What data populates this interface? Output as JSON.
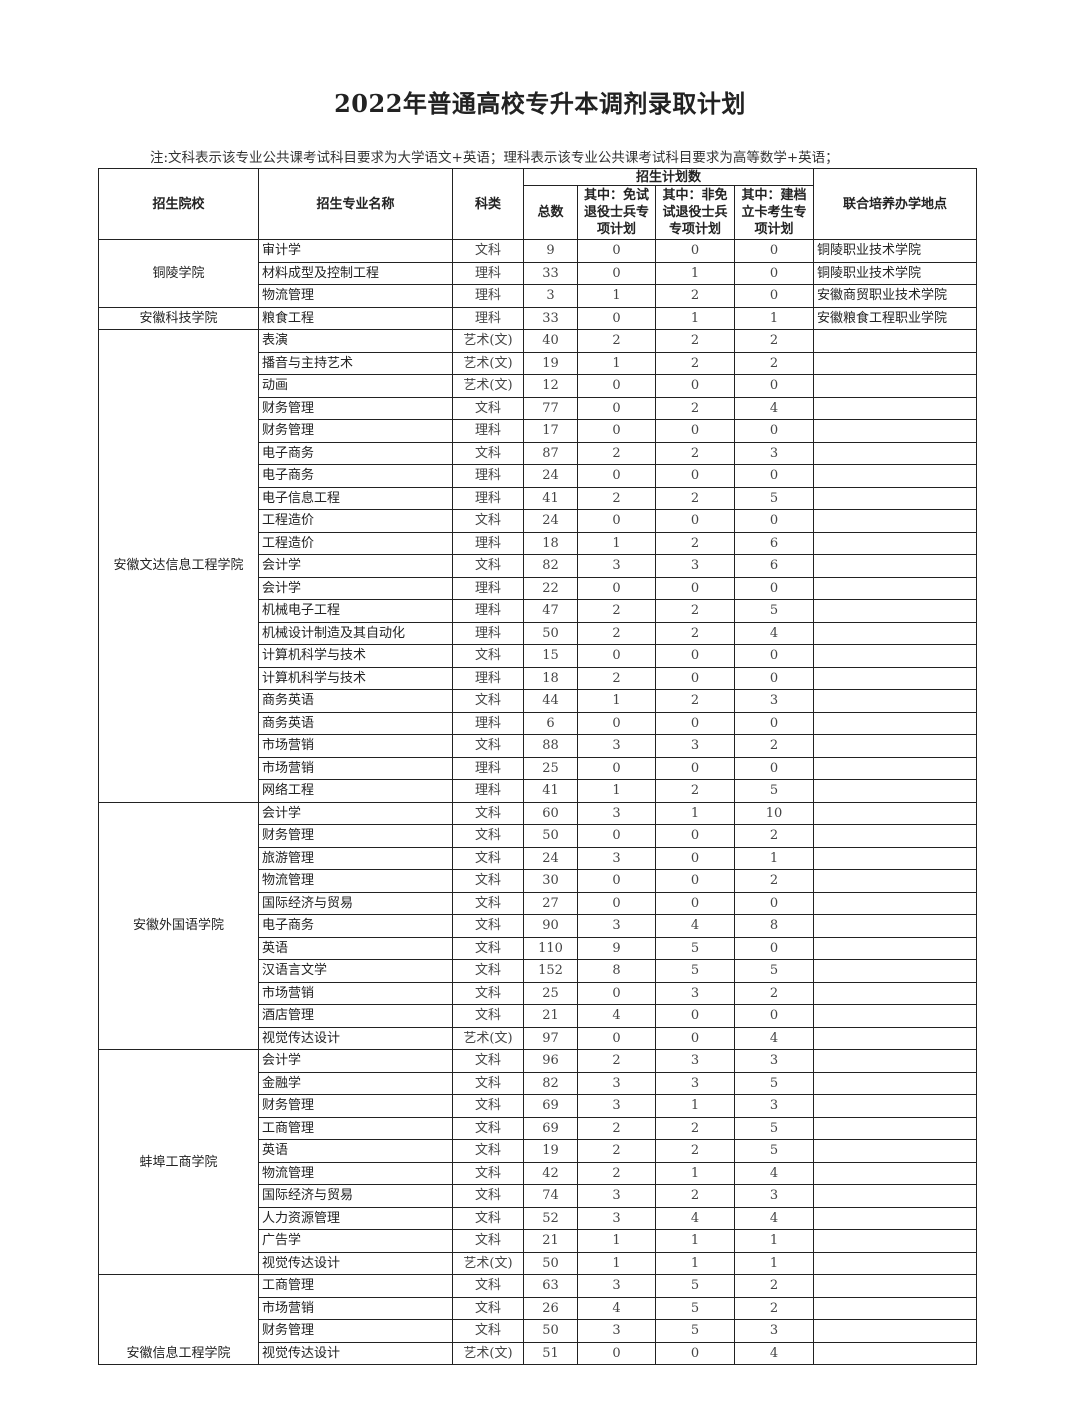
{
  "title": "2022年普通高校专升本调剂录取计划",
  "note": "注:文科表示该专业公共课考试科目要求为大学语文+英语；理科表示该专业公共课考试科目要求为高等数学+英语；",
  "headers": {
    "school": "招生院校",
    "major": "招生专业名称",
    "subject": "科类",
    "plan_group": "招生计划数",
    "total": "总数",
    "veteran_exempt": "其中：免试退役士兵专项计划",
    "veteran_nonexempt": "其中：非免试退役士兵专项计划",
    "poverty": "其中：建档立卡考生专项计划",
    "location": "联合培养办学地点"
  },
  "groups": [
    {
      "school": "铜陵学院",
      "rows": [
        {
          "major": "审计学",
          "subject": "文科",
          "total": "9",
          "a": "0",
          "b": "0",
          "c": "0",
          "location": "铜陵职业技术学院"
        },
        {
          "major": "材料成型及控制工程",
          "subject": "理科",
          "total": "33",
          "a": "0",
          "b": "1",
          "c": "0",
          "location": "铜陵职业技术学院"
        },
        {
          "major": "物流管理",
          "subject": "理科",
          "total": "3",
          "a": "1",
          "b": "2",
          "c": "0",
          "location": "安徽商贸职业技术学院"
        }
      ]
    },
    {
      "school": "安徽科技学院",
      "rows": [
        {
          "major": "粮食工程",
          "subject": "理科",
          "total": "33",
          "a": "0",
          "b": "1",
          "c": "1",
          "location": "安徽粮食工程职业学院"
        }
      ]
    },
    {
      "school": "安徽文达信息工程学院",
      "rows": [
        {
          "major": "表演",
          "subject": "艺术(文)",
          "total": "40",
          "a": "2",
          "b": "2",
          "c": "2",
          "location": ""
        },
        {
          "major": "播音与主持艺术",
          "subject": "艺术(文)",
          "total": "19",
          "a": "1",
          "b": "2",
          "c": "2",
          "location": ""
        },
        {
          "major": "动画",
          "subject": "艺术(文)",
          "total": "12",
          "a": "0",
          "b": "0",
          "c": "0",
          "location": ""
        },
        {
          "major": "财务管理",
          "subject": "文科",
          "total": "77",
          "a": "0",
          "b": "2",
          "c": "4",
          "location": ""
        },
        {
          "major": "财务管理",
          "subject": "理科",
          "total": "17",
          "a": "0",
          "b": "0",
          "c": "0",
          "location": ""
        },
        {
          "major": "电子商务",
          "subject": "文科",
          "total": "87",
          "a": "2",
          "b": "2",
          "c": "3",
          "location": ""
        },
        {
          "major": "电子商务",
          "subject": "理科",
          "total": "24",
          "a": "0",
          "b": "0",
          "c": "0",
          "location": ""
        },
        {
          "major": "电子信息工程",
          "subject": "理科",
          "total": "41",
          "a": "2",
          "b": "2",
          "c": "5",
          "location": ""
        },
        {
          "major": "工程造价",
          "subject": "文科",
          "total": "24",
          "a": "0",
          "b": "0",
          "c": "0",
          "location": ""
        },
        {
          "major": "工程造价",
          "subject": "理科",
          "total": "18",
          "a": "1",
          "b": "2",
          "c": "6",
          "location": ""
        },
        {
          "major": "会计学",
          "subject": "文科",
          "total": "82",
          "a": "3",
          "b": "3",
          "c": "6",
          "location": ""
        },
        {
          "major": "会计学",
          "subject": "理科",
          "total": "22",
          "a": "0",
          "b": "0",
          "c": "0",
          "location": ""
        },
        {
          "major": "机械电子工程",
          "subject": "理科",
          "total": "47",
          "a": "2",
          "b": "2",
          "c": "5",
          "location": ""
        },
        {
          "major": "机械设计制造及其自动化",
          "subject": "理科",
          "total": "50",
          "a": "2",
          "b": "2",
          "c": "4",
          "location": ""
        },
        {
          "major": "计算机科学与技术",
          "subject": "文科",
          "total": "15",
          "a": "0",
          "b": "0",
          "c": "0",
          "location": ""
        },
        {
          "major": "计算机科学与技术",
          "subject": "理科",
          "total": "18",
          "a": "2",
          "b": "0",
          "c": "0",
          "location": ""
        },
        {
          "major": "商务英语",
          "subject": "文科",
          "total": "44",
          "a": "1",
          "b": "2",
          "c": "3",
          "location": ""
        },
        {
          "major": "商务英语",
          "subject": "理科",
          "total": "6",
          "a": "0",
          "b": "0",
          "c": "0",
          "location": ""
        },
        {
          "major": "市场营销",
          "subject": "文科",
          "total": "88",
          "a": "3",
          "b": "3",
          "c": "2",
          "location": ""
        },
        {
          "major": "市场营销",
          "subject": "理科",
          "total": "25",
          "a": "0",
          "b": "0",
          "c": "0",
          "location": ""
        },
        {
          "major": "网络工程",
          "subject": "理科",
          "total": "41",
          "a": "1",
          "b": "2",
          "c": "5",
          "location": ""
        }
      ]
    },
    {
      "school": "安徽外国语学院",
      "rows": [
        {
          "major": "会计学",
          "subject": "文科",
          "total": "60",
          "a": "3",
          "b": "1",
          "c": "10",
          "location": ""
        },
        {
          "major": "财务管理",
          "subject": "文科",
          "total": "50",
          "a": "0",
          "b": "0",
          "c": "2",
          "location": ""
        },
        {
          "major": "旅游管理",
          "subject": "文科",
          "total": "24",
          "a": "3",
          "b": "0",
          "c": "1",
          "location": ""
        },
        {
          "major": "物流管理",
          "subject": "文科",
          "total": "30",
          "a": "0",
          "b": "0",
          "c": "2",
          "location": ""
        },
        {
          "major": "国际经济与贸易",
          "subject": "文科",
          "total": "27",
          "a": "0",
          "b": "0",
          "c": "0",
          "location": ""
        },
        {
          "major": "电子商务",
          "subject": "文科",
          "total": "90",
          "a": "3",
          "b": "4",
          "c": "8",
          "location": ""
        },
        {
          "major": "英语",
          "subject": "文科",
          "total": "110",
          "a": "9",
          "b": "5",
          "c": "0",
          "location": ""
        },
        {
          "major": "汉语言文学",
          "subject": "文科",
          "total": "152",
          "a": "8",
          "b": "5",
          "c": "5",
          "location": ""
        },
        {
          "major": "市场营销",
          "subject": "文科",
          "total": "25",
          "a": "0",
          "b": "3",
          "c": "2",
          "location": ""
        },
        {
          "major": "酒店管理",
          "subject": "文科",
          "total": "21",
          "a": "4",
          "b": "0",
          "c": "0",
          "location": ""
        },
        {
          "major": "视觉传达设计",
          "subject": "艺术(文)",
          "total": "97",
          "a": "0",
          "b": "0",
          "c": "4",
          "location": ""
        }
      ]
    },
    {
      "school": "蚌埠工商学院",
      "rows": [
        {
          "major": "会计学",
          "subject": "文科",
          "total": "96",
          "a": "2",
          "b": "3",
          "c": "3",
          "location": ""
        },
        {
          "major": "金融学",
          "subject": "文科",
          "total": "82",
          "a": "3",
          "b": "3",
          "c": "5",
          "location": ""
        },
        {
          "major": "财务管理",
          "subject": "文科",
          "total": "69",
          "a": "3",
          "b": "1",
          "c": "3",
          "location": ""
        },
        {
          "major": "工商管理",
          "subject": "文科",
          "total": "69",
          "a": "2",
          "b": "2",
          "c": "5",
          "location": ""
        },
        {
          "major": "英语",
          "subject": "文科",
          "total": "19",
          "a": "2",
          "b": "2",
          "c": "5",
          "location": ""
        },
        {
          "major": "物流管理",
          "subject": "文科",
          "total": "42",
          "a": "2",
          "b": "1",
          "c": "4",
          "location": ""
        },
        {
          "major": "国际经济与贸易",
          "subject": "文科",
          "total": "74",
          "a": "3",
          "b": "2",
          "c": "3",
          "location": ""
        },
        {
          "major": "人力资源管理",
          "subject": "文科",
          "total": "52",
          "a": "3",
          "b": "4",
          "c": "4",
          "location": ""
        },
        {
          "major": "广告学",
          "subject": "文科",
          "total": "21",
          "a": "1",
          "b": "1",
          "c": "1",
          "location": ""
        },
        {
          "major": "视觉传达设计",
          "subject": "艺术(文)",
          "total": "50",
          "a": "1",
          "b": "1",
          "c": "1",
          "location": ""
        }
      ]
    },
    {
      "school": "安徽信息工程学院",
      "rows": [
        {
          "major": "工商管理",
          "subject": "文科",
          "total": "63",
          "a": "3",
          "b": "5",
          "c": "2",
          "location": ""
        },
        {
          "major": "市场营销",
          "subject": "文科",
          "total": "26",
          "a": "4",
          "b": "5",
          "c": "2",
          "location": ""
        },
        {
          "major": "财务管理",
          "subject": "文科",
          "total": "50",
          "a": "3",
          "b": "5",
          "c": "3",
          "location": ""
        },
        {
          "major": "视觉传达设计",
          "subject": "艺术(文)",
          "total": "51",
          "a": "0",
          "b": "0",
          "c": "4",
          "location": ""
        }
      ]
    }
  ]
}
